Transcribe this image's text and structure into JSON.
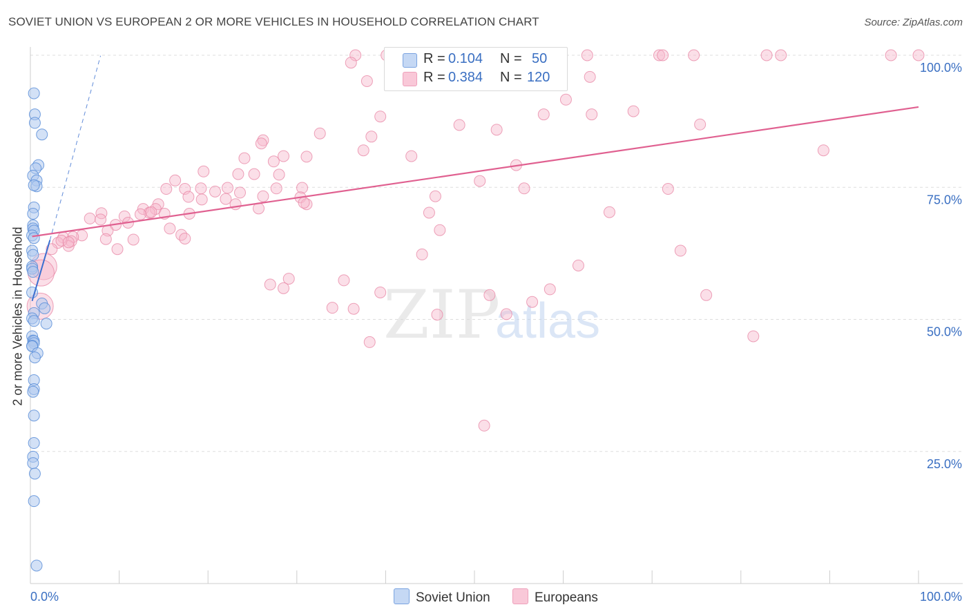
{
  "title": "SOVIET UNION VS EUROPEAN 2 OR MORE VEHICLES IN HOUSEHOLD CORRELATION CHART",
  "source": "Source: ZipAtlas.com",
  "watermark": {
    "zip": "ZIP",
    "atlas": "atlas"
  },
  "legend": {
    "rows": [
      {
        "r_label": "R =",
        "r_value": "0.104",
        "n_label": "N =",
        "n_value": "50"
      },
      {
        "r_label": "R =",
        "r_value": "0.384",
        "n_label": "N =",
        "n_value": "120"
      }
    ],
    "bottom": [
      "Soviet Union",
      "Europeans"
    ]
  },
  "colors": {
    "soviet_fill": "#aec9ef",
    "soviet_stroke": "#5b8ed8",
    "soviet_line": "#3a6fd0",
    "euro_fill": "#f6b8cc",
    "euro_stroke": "#e98aa8",
    "euro_line": "#e06090",
    "tick_label": "#3a6fc2",
    "grid": "#dddddd"
  },
  "chart_data": {
    "type": "scatter",
    "title": "SOVIET UNION VS EUROPEAN 2 OR MORE VEHICLES IN HOUSEHOLD CORRELATION CHART",
    "xlabel": "",
    "ylabel": "2 or more Vehicles in Household",
    "xlim": [
      0,
      100
    ],
    "ylim": [
      0,
      100
    ],
    "x_tick_labels": [
      "0.0%",
      "100.0%"
    ],
    "y_tick_labels": [
      "25.0%",
      "50.0%",
      "75.0%",
      "100.0%"
    ],
    "y_ticks": [
      25,
      50,
      75,
      100
    ],
    "series": [
      {
        "name": "Soviet Union",
        "R": 0.104,
        "N": 50,
        "trend": {
          "x": [
            0.2,
            2.2
          ],
          "y": [
            53.5,
            65.0
          ]
        },
        "trend_extension": {
          "x": [
            2.2,
            7.9
          ],
          "y": [
            65.0,
            99.9
          ]
        },
        "points": [
          [
            0.4,
            92.8
          ],
          [
            0.5,
            88.8
          ],
          [
            0.5,
            87.2
          ],
          [
            1.3,
            85.0
          ],
          [
            0.9,
            79.2
          ],
          [
            0.6,
            78.6
          ],
          [
            0.3,
            77.2
          ],
          [
            0.7,
            76.3
          ],
          [
            0.7,
            75.2
          ],
          [
            0.4,
            75.4
          ],
          [
            0.4,
            71.2
          ],
          [
            0.3,
            70.0
          ],
          [
            0.3,
            67.8
          ],
          [
            0.3,
            67.2
          ],
          [
            0.4,
            66.8
          ],
          [
            0.2,
            65.9
          ],
          [
            0.4,
            65.4
          ],
          [
            0.2,
            63.0
          ],
          [
            0.3,
            62.2
          ],
          [
            0.2,
            60.0
          ],
          [
            0.2,
            59.6
          ],
          [
            0.3,
            59.0
          ],
          [
            0.2,
            55.1
          ],
          [
            1.3,
            53.0
          ],
          [
            1.6,
            52.1
          ],
          [
            0.4,
            51.2
          ],
          [
            0.2,
            50.2
          ],
          [
            0.4,
            49.7
          ],
          [
            1.8,
            49.2
          ],
          [
            0.2,
            46.8
          ],
          [
            0.3,
            46.0
          ],
          [
            0.4,
            45.9
          ],
          [
            0.4,
            45.5
          ],
          [
            0.2,
            45.0
          ],
          [
            0.2,
            44.9
          ],
          [
            0.8,
            43.6
          ],
          [
            0.5,
            42.8
          ],
          [
            0.4,
            38.5
          ],
          [
            0.4,
            36.8
          ],
          [
            0.3,
            36.3
          ],
          [
            0.4,
            31.8
          ],
          [
            0.4,
            26.6
          ],
          [
            0.3,
            24.0
          ],
          [
            0.3,
            22.8
          ],
          [
            0.5,
            20.8
          ],
          [
            0.4,
            15.6
          ],
          [
            0.7,
            3.4
          ]
        ]
      },
      {
        "name": "Europeans",
        "R": 0.384,
        "N": 120,
        "trend": {
          "x": [
            0.2,
            100.0
          ],
          "y": [
            65.7,
            90.2
          ]
        },
        "big_points": [
          [
            1.5,
            60.0
          ],
          [
            1.2,
            58.8
          ],
          [
            1.1,
            52.5
          ]
        ],
        "points": [
          [
            36.6,
            100.0
          ],
          [
            40.1,
            100.0
          ],
          [
            62.7,
            100.0
          ],
          [
            70.8,
            100.0
          ],
          [
            71.2,
            100.0
          ],
          [
            74.7,
            100.0
          ],
          [
            82.9,
            100.0
          ],
          [
            84.5,
            100.0
          ],
          [
            100.0,
            100.0
          ],
          [
            36.1,
            98.6
          ],
          [
            58.9,
            96.8
          ],
          [
            63.0,
            95.9
          ],
          [
            37.9,
            95.1
          ],
          [
            60.3,
            91.6
          ],
          [
            67.9,
            89.4
          ],
          [
            63.2,
            88.8
          ],
          [
            39.4,
            88.4
          ],
          [
            57.8,
            88.8
          ],
          [
            48.3,
            86.8
          ],
          [
            75.4,
            86.9
          ],
          [
            52.5,
            85.9
          ],
          [
            32.6,
            85.2
          ],
          [
            38.4,
            84.6
          ],
          [
            26.2,
            83.9
          ],
          [
            26.0,
            83.3
          ],
          [
            89.3,
            82.0
          ],
          [
            37.5,
            82.0
          ],
          [
            28.5,
            80.9
          ],
          [
            31.1,
            80.8
          ],
          [
            42.9,
            80.9
          ],
          [
            24.1,
            80.5
          ],
          [
            54.7,
            79.2
          ],
          [
            27.4,
            79.9
          ],
          [
            19.5,
            78.0
          ],
          [
            25.2,
            77.5
          ],
          [
            23.4,
            77.5
          ],
          [
            28.0,
            77.4
          ],
          [
            50.6,
            76.2
          ],
          [
            16.3,
            76.3
          ],
          [
            71.8,
            74.7
          ],
          [
            15.3,
            74.7
          ],
          [
            17.4,
            74.7
          ],
          [
            19.2,
            74.8
          ],
          [
            22.2,
            74.9
          ],
          [
            27.7,
            74.8
          ],
          [
            30.6,
            74.9
          ],
          [
            55.6,
            74.8
          ],
          [
            20.8,
            74.2
          ],
          [
            23.6,
            74.0
          ],
          [
            17.8,
            73.2
          ],
          [
            26.2,
            73.3
          ],
          [
            30.4,
            73.1
          ],
          [
            45.6,
            73.3
          ],
          [
            19.3,
            72.7
          ],
          [
            22.0,
            72.8
          ],
          [
            14.4,
            71.8
          ],
          [
            23.1,
            71.8
          ],
          [
            31.1,
            71.8
          ],
          [
            30.8,
            72.1
          ],
          [
            12.7,
            70.9
          ],
          [
            14.1,
            70.9
          ],
          [
            17.9,
            70.0
          ],
          [
            15.1,
            70.0
          ],
          [
            13.4,
            70.2
          ],
          [
            25.7,
            71.0
          ],
          [
            44.9,
            70.2
          ],
          [
            13.6,
            70.3
          ],
          [
            12.4,
            69.9
          ],
          [
            8.0,
            70.1
          ],
          [
            10.6,
            69.5
          ],
          [
            65.2,
            70.3
          ],
          [
            6.7,
            69.1
          ],
          [
            7.9,
            68.9
          ],
          [
            11.0,
            68.3
          ],
          [
            9.6,
            67.9
          ],
          [
            15.7,
            67.2
          ],
          [
            5.8,
            65.9
          ],
          [
            8.7,
            66.8
          ],
          [
            46.1,
            66.9
          ],
          [
            17.0,
            66.0
          ],
          [
            4.8,
            65.6
          ],
          [
            3.7,
            65.5
          ],
          [
            4.6,
            64.8
          ],
          [
            8.5,
            65.2
          ],
          [
            11.6,
            65.1
          ],
          [
            17.4,
            65.3
          ],
          [
            3.1,
            64.5
          ],
          [
            4.3,
            63.9
          ],
          [
            3.5,
            64.9
          ],
          [
            2.4,
            63.3
          ],
          [
            9.8,
            63.3
          ],
          [
            44.1,
            62.3
          ],
          [
            73.2,
            63.0
          ],
          [
            61.7,
            60.2
          ],
          [
            35.3,
            57.4
          ],
          [
            27.0,
            56.6
          ],
          [
            29.1,
            57.7
          ],
          [
            28.5,
            55.9
          ],
          [
            39.4,
            55.1
          ],
          [
            51.7,
            54.6
          ],
          [
            58.5,
            55.7
          ],
          [
            76.1,
            54.6
          ],
          [
            56.5,
            53.3
          ],
          [
            34.0,
            52.2
          ],
          [
            36.4,
            52.0
          ],
          [
            53.6,
            51.0
          ],
          [
            45.8,
            50.9
          ],
          [
            81.4,
            46.8
          ],
          [
            38.2,
            45.7
          ],
          [
            51.1,
            29.9
          ],
          [
            96.9,
            100.0
          ],
          [
            4.3,
            64.6
          ]
        ]
      }
    ]
  }
}
